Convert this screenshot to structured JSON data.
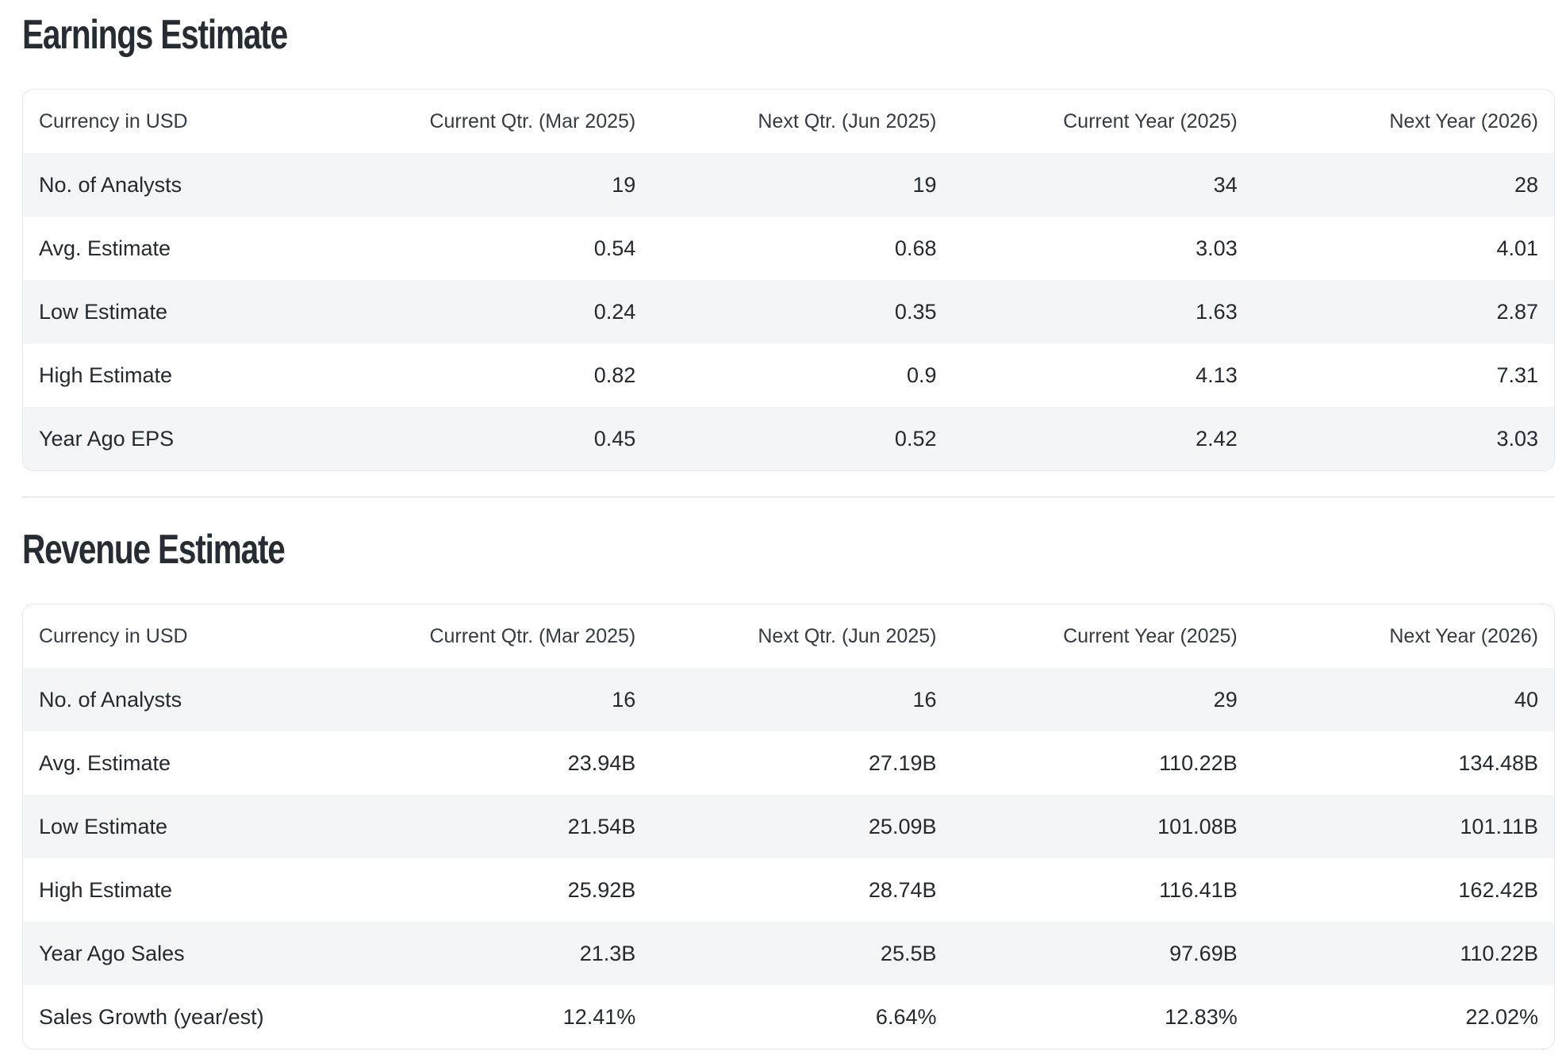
{
  "colors": {
    "background": "#ffffff",
    "body_text": "#232a31",
    "title_text": "#262c33",
    "header_text": "#343b43",
    "row_stripe": "#f4f5f7",
    "card_border": "#e3e6ea",
    "divider": "#dde0e4"
  },
  "sections": [
    {
      "id": "earnings-estimate",
      "title": "Earnings Estimate",
      "table": {
        "columns": [
          "Currency in USD",
          "Current Qtr. (Mar 2025)",
          "Next Qtr. (Jun 2025)",
          "Current Year (2025)",
          "Next Year (2026)"
        ],
        "rows": [
          {
            "label": "No. of Analysts",
            "values": [
              "19",
              "19",
              "34",
              "28"
            ]
          },
          {
            "label": "Avg. Estimate",
            "values": [
              "0.54",
              "0.68",
              "3.03",
              "4.01"
            ]
          },
          {
            "label": "Low Estimate",
            "values": [
              "0.24",
              "0.35",
              "1.63",
              "2.87"
            ]
          },
          {
            "label": "High Estimate",
            "values": [
              "0.82",
              "0.9",
              "4.13",
              "7.31"
            ]
          },
          {
            "label": "Year Ago EPS",
            "values": [
              "0.45",
              "0.52",
              "2.42",
              "3.03"
            ]
          }
        ]
      }
    },
    {
      "id": "revenue-estimate",
      "title": "Revenue Estimate",
      "table": {
        "columns": [
          "Currency in USD",
          "Current Qtr. (Mar 2025)",
          "Next Qtr. (Jun 2025)",
          "Current Year (2025)",
          "Next Year (2026)"
        ],
        "rows": [
          {
            "label": "No. of Analysts",
            "values": [
              "16",
              "16",
              "29",
              "40"
            ]
          },
          {
            "label": "Avg. Estimate",
            "values": [
              "23.94B",
              "27.19B",
              "110.22B",
              "134.48B"
            ]
          },
          {
            "label": "Low Estimate",
            "values": [
              "21.54B",
              "25.09B",
              "101.08B",
              "101.11B"
            ]
          },
          {
            "label": "High Estimate",
            "values": [
              "25.92B",
              "28.74B",
              "116.41B",
              "162.42B"
            ]
          },
          {
            "label": "Year Ago Sales",
            "values": [
              "21.3B",
              "25.5B",
              "97.69B",
              "110.22B"
            ]
          },
          {
            "label": "Sales Growth (year/est)",
            "values": [
              "12.41%",
              "6.64%",
              "12.83%",
              "22.02%"
            ]
          }
        ]
      }
    }
  ]
}
